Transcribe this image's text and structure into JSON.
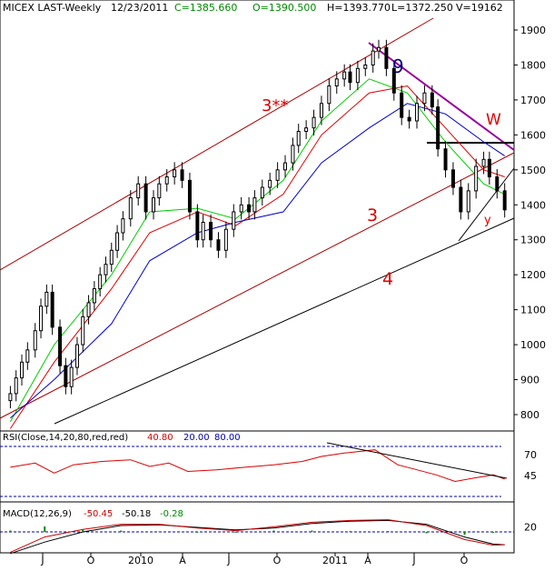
{
  "header": {
    "symbol": "MICEX LAST-Weekly",
    "date": "12/23/2011",
    "close": "C=1385.660",
    "open": "O=1390.500",
    "high": "H=1393.770",
    "low": "L=1372.250",
    "volume": "V=19162"
  },
  "annotations": {
    "wave_3_star": "3**",
    "wave_9": "9",
    "wave_w": "W",
    "wave_3": "3",
    "wave_4": "4",
    "wave_y": "y"
  },
  "rsi_header": {
    "label": "RSI(Close,14,20,80,red,red)",
    "value": "40.80",
    "low_level": "20.00",
    "high_level": "80.00"
  },
  "macd_header": {
    "label": "MACD(12,26,9)",
    "macd": "-50.45",
    "signal": "-50.18",
    "hist": "-0.28"
  },
  "colors": {
    "price": "#000000",
    "sma_green": "#00cc00",
    "sma_red": "#dd0000",
    "sma_blue": "#0000cc",
    "channel": "#aa0000",
    "trend_purple": "#990099",
    "rsi": "#dd0000",
    "level_line": "#0000aa",
    "macd": "#cc0000",
    "label_red": "#dd0000",
    "label_navy": "#000080"
  },
  "chart_data": [
    {
      "type": "candlestick",
      "title": "MICEX LAST-Weekly",
      "x_tick_labels": [
        "J",
        "O",
        "2010",
        "A",
        "J",
        "O",
        "2011",
        "A",
        "J",
        "O"
      ],
      "y_tick_labels": [
        "800",
        "900",
        "1000",
        "1100",
        "1200",
        "1300",
        "1400",
        "1500",
        "1600",
        "1700",
        "1800",
        "1900"
      ],
      "ylim": [
        710,
        1935
      ],
      "grid": false,
      "close_series": [
        [
          2009.37,
          860
        ],
        [
          2009.4,
          905
        ],
        [
          2009.43,
          950
        ],
        [
          2009.46,
          985
        ],
        [
          2009.5,
          1040
        ],
        [
          2009.53,
          1110
        ],
        [
          2009.56,
          1150
        ],
        [
          2009.59,
          1050
        ],
        [
          2009.63,
          940
        ],
        [
          2009.66,
          880
        ],
        [
          2009.69,
          935
        ],
        [
          2009.72,
          1000
        ],
        [
          2009.75,
          1080
        ],
        [
          2009.78,
          1120
        ],
        [
          2009.81,
          1160
        ],
        [
          2009.84,
          1200
        ],
        [
          2009.87,
          1230
        ],
        [
          2009.9,
          1270
        ],
        [
          2009.93,
          1320
        ],
        [
          2009.96,
          1360
        ],
        [
          2010.0,
          1420
        ],
        [
          2010.04,
          1460
        ],
        [
          2010.08,
          1380
        ],
        [
          2010.12,
          1420
        ],
        [
          2010.15,
          1460
        ],
        [
          2010.19,
          1480
        ],
        [
          2010.23,
          1500
        ],
        [
          2010.27,
          1470
        ],
        [
          2010.31,
          1380
        ],
        [
          2010.35,
          1300
        ],
        [
          2010.38,
          1350
        ],
        [
          2010.42,
          1300
        ],
        [
          2010.46,
          1270
        ],
        [
          2010.5,
          1330
        ],
        [
          2010.54,
          1380
        ],
        [
          2010.58,
          1400
        ],
        [
          2010.62,
          1380
        ],
        [
          2010.65,
          1420
        ],
        [
          2010.69,
          1450
        ],
        [
          2010.73,
          1470
        ],
        [
          2010.77,
          1500
        ],
        [
          2010.81,
          1520
        ],
        [
          2010.85,
          1570
        ],
        [
          2010.88,
          1610
        ],
        [
          2010.92,
          1620
        ],
        [
          2010.96,
          1650
        ],
        [
          2011.0,
          1690
        ],
        [
          2011.04,
          1740
        ],
        [
          2011.08,
          1760
        ],
        [
          2011.12,
          1780
        ],
        [
          2011.15,
          1750
        ],
        [
          2011.19,
          1790
        ],
        [
          2011.23,
          1800
        ],
        [
          2011.27,
          1840
        ],
        [
          2011.3,
          1850
        ],
        [
          2011.34,
          1790
        ],
        [
          2011.38,
          1720
        ],
        [
          2011.42,
          1650
        ],
        [
          2011.46,
          1640
        ],
        [
          2011.5,
          1690
        ],
        [
          2011.54,
          1720
        ],
        [
          2011.58,
          1680
        ],
        [
          2011.61,
          1560
        ],
        [
          2011.65,
          1500
        ],
        [
          2011.69,
          1450
        ],
        [
          2011.73,
          1380
        ],
        [
          2011.77,
          1440
        ],
        [
          2011.81,
          1510
        ],
        [
          2011.85,
          1530
        ],
        [
          2011.88,
          1480
        ],
        [
          2011.92,
          1440
        ],
        [
          2011.96,
          1385.66
        ]
      ],
      "moving_averages": [
        {
          "color": "green",
          "values": [
            [
              2009.37,
              780
            ],
            [
              2009.6,
              1000
            ],
            [
              2009.9,
              1200
            ],
            [
              2010.1,
              1380
            ],
            [
              2010.35,
              1390
            ],
            [
              2010.55,
              1360
            ],
            [
              2010.8,
              1470
            ],
            [
              2011.0,
              1640
            ],
            [
              2011.25,
              1760
            ],
            [
              2011.45,
              1720
            ],
            [
              2011.65,
              1580
            ],
            [
              2011.85,
              1460
            ],
            [
              2011.96,
              1430
            ]
          ]
        },
        {
          "color": "red",
          "values": [
            [
              2009.37,
              760
            ],
            [
              2009.6,
              950
            ],
            [
              2009.9,
              1160
            ],
            [
              2010.1,
              1320
            ],
            [
              2010.35,
              1380
            ],
            [
              2010.55,
              1340
            ],
            [
              2010.8,
              1430
            ],
            [
              2011.0,
              1600
            ],
            [
              2011.25,
              1720
            ],
            [
              2011.45,
              1740
            ],
            [
              2011.65,
              1620
            ],
            [
              2011.85,
              1500
            ],
            [
              2011.96,
              1480
            ]
          ]
        },
        {
          "color": "blue",
          "values": [
            [
              2009.37,
              790
            ],
            [
              2009.6,
              900
            ],
            [
              2009.9,
              1060
            ],
            [
              2010.1,
              1240
            ],
            [
              2010.35,
              1320
            ],
            [
              2010.55,
              1350
            ],
            [
              2010.8,
              1380
            ],
            [
              2011.0,
              1520
            ],
            [
              2011.25,
              1620
            ],
            [
              2011.45,
              1690
            ],
            [
              2011.65,
              1660
            ],
            [
              2011.85,
              1580
            ],
            [
              2011.96,
              1540
            ]
          ]
        }
      ]
    },
    {
      "type": "line",
      "title": "RSI(Close,14,20,80,red,red)",
      "ylim": [
        20,
        90
      ],
      "y_tick_labels": [
        "70",
        "45"
      ],
      "levels": [
        20,
        80
      ],
      "values": [
        [
          2009.37,
          55
        ],
        [
          2009.5,
          60
        ],
        [
          2009.6,
          48
        ],
        [
          2009.7,
          58
        ],
        [
          2009.85,
          62
        ],
        [
          2010.0,
          64
        ],
        [
          2010.1,
          56
        ],
        [
          2010.2,
          60
        ],
        [
          2010.3,
          50
        ],
        [
          2010.45,
          52
        ],
        [
          2010.6,
          55
        ],
        [
          2010.75,
          58
        ],
        [
          2010.9,
          62
        ],
        [
          2011.0,
          68
        ],
        [
          2011.12,
          72
        ],
        [
          2011.28,
          76
        ],
        [
          2011.4,
          58
        ],
        [
          2011.5,
          52
        ],
        [
          2011.6,
          46
        ],
        [
          2011.7,
          38
        ],
        [
          2011.8,
          42
        ],
        [
          2011.9,
          46
        ],
        [
          2011.96,
          40.8
        ]
      ]
    },
    {
      "type": "line",
      "title": "MACD(12,26,9)",
      "ylim": [
        -90,
        60
      ],
      "y_tick_labels": [
        "20"
      ],
      "macd": [
        [
          2009.37,
          -80
        ],
        [
          2009.55,
          -20
        ],
        [
          2009.75,
          10
        ],
        [
          2009.95,
          30
        ],
        [
          2010.15,
          30
        ],
        [
          2010.35,
          15
        ],
        [
          2010.55,
          5
        ],
        [
          2010.75,
          20
        ],
        [
          2010.95,
          38
        ],
        [
          2011.15,
          45
        ],
        [
          2011.35,
          48
        ],
        [
          2011.55,
          25
        ],
        [
          2011.75,
          -30
        ],
        [
          2011.9,
          -52
        ],
        [
          2011.96,
          -50.45
        ]
      ],
      "signal": [
        [
          2009.37,
          -85
        ],
        [
          2009.55,
          -40
        ],
        [
          2009.75,
          0
        ],
        [
          2009.95,
          25
        ],
        [
          2010.15,
          28
        ],
        [
          2010.35,
          18
        ],
        [
          2010.55,
          8
        ],
        [
          2010.75,
          15
        ],
        [
          2010.95,
          33
        ],
        [
          2011.15,
          42
        ],
        [
          2011.35,
          45
        ],
        [
          2011.55,
          30
        ],
        [
          2011.75,
          -20
        ],
        [
          2011.9,
          -48
        ],
        [
          2011.96,
          -50.18
        ]
      ],
      "histogram_last": -0.28
    }
  ]
}
